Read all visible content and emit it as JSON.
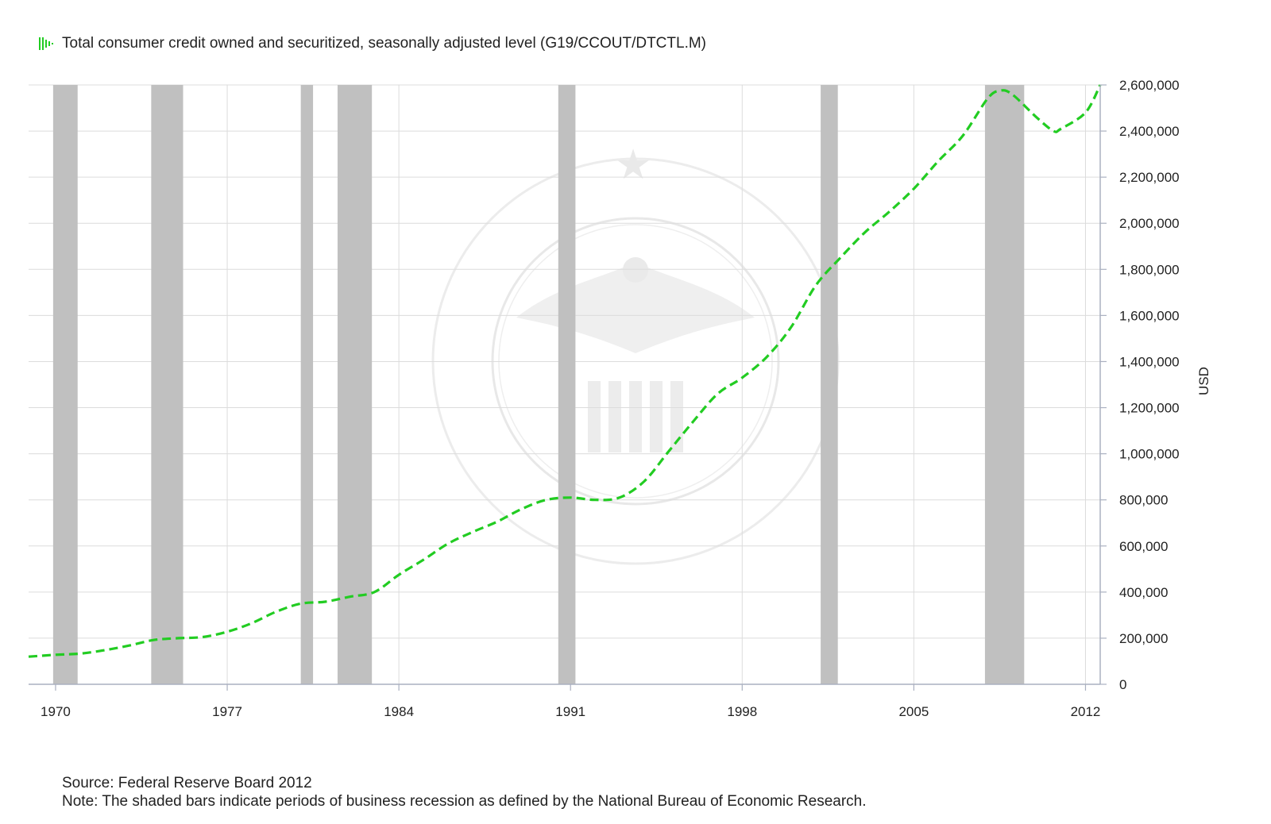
{
  "legend": {
    "label": "Total consumer credit owned and securitized, seasonally adjusted level (G19/CCOUT/DTCTL.M)",
    "icon": "legend-line-icon"
  },
  "footer": {
    "source": "Source: Federal Reserve Board 2012",
    "note": "Note: The shaded bars indicate periods of business recession as defined by the National Bureau of Economic Research."
  },
  "colors": {
    "series": "#22cc22",
    "recession": "#c0c0c0",
    "grid": "#dcdcdc",
    "axis": "#aab0c0",
    "watermark": "#e6e6e6"
  },
  "chart_data": {
    "type": "line",
    "title": "",
    "xlabel": "",
    "ylabel": "USD",
    "xlim": [
      1968.9,
      2012.6
    ],
    "ylim": [
      0,
      2600000
    ],
    "x_ticks": [
      1970,
      1977,
      1984,
      1991,
      1998,
      2005,
      2012
    ],
    "x_tick_labels": [
      "1970",
      "1977",
      "1984",
      "1991",
      "1998",
      "2005",
      "2012"
    ],
    "y_ticks": [
      0,
      200000,
      400000,
      600000,
      800000,
      1000000,
      1200000,
      1400000,
      1600000,
      1800000,
      2000000,
      2200000,
      2400000,
      2600000
    ],
    "y_tick_labels": [
      "0",
      "200,000",
      "400,000",
      "600,000",
      "800,000",
      "1,000,000",
      "1,200,000",
      "1,400,000",
      "1,600,000",
      "1,800,000",
      "2,000,000",
      "2,200,000",
      "2,400,000",
      "2,600,000"
    ],
    "recessions": [
      [
        1969.9,
        1970.9
      ],
      [
        1973.9,
        1975.2
      ],
      [
        1980.0,
        1980.5
      ],
      [
        1981.5,
        1982.9
      ],
      [
        1990.5,
        1991.2
      ],
      [
        2001.2,
        2001.9
      ],
      [
        2007.9,
        2009.5
      ]
    ],
    "series": [
      {
        "name": "Total consumer credit owned and securitized, seasonally adjusted level (G19/CCOUT/DTCTL.M)",
        "style": "dashed",
        "x": [
          1968.9,
          1970,
          1971,
          1972,
          1973,
          1974,
          1975,
          1976,
          1977,
          1978,
          1979,
          1980,
          1981,
          1982,
          1983,
          1984,
          1985,
          1986,
          1987,
          1988,
          1989,
          1990,
          1991,
          1992,
          1993,
          1994,
          1995,
          1996,
          1997,
          1998,
          1999,
          2000,
          2001,
          2002,
          2003,
          2004,
          2005,
          2006,
          2007,
          2008,
          2008.5,
          2009,
          2010,
          2010.7,
          2011,
          2012,
          2012.6
        ],
        "y": [
          120000,
          128000,
          133000,
          148000,
          168000,
          192000,
          200000,
          205000,
          228000,
          265000,
          315000,
          350000,
          358000,
          380000,
          400000,
          475000,
          540000,
          610000,
          660000,
          705000,
          760000,
          800000,
          810000,
          800000,
          810000,
          880000,
          1010000,
          1140000,
          1260000,
          1330000,
          1420000,
          1550000,
          1730000,
          1850000,
          1960000,
          2050000,
          2150000,
          2270000,
          2380000,
          2540000,
          2575000,
          2560000,
          2460000,
          2400000,
          2410000,
          2480000,
          2600000
        ]
      }
    ]
  }
}
